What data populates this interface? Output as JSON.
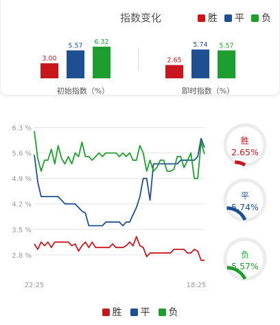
{
  "header": {
    "title": "指数变化",
    "legend": [
      {
        "label": "胜",
        "color": "#c8161d"
      },
      {
        "label": "平",
        "color": "#1d4f91"
      },
      {
        "label": "负",
        "color": "#1e9e2e"
      }
    ]
  },
  "chart_data": [
    {
      "type": "bar",
      "xlabel": "初始指数（%）",
      "categories": [
        "胜",
        "平",
        "负"
      ],
      "values": [
        3.0,
        5.57,
        6.32
      ],
      "labels": [
        "3.00",
        "5.57",
        "6.32"
      ],
      "colors": [
        "#c8161d",
        "#1d4f91",
        "#1e9e2e"
      ]
    },
    {
      "type": "bar",
      "xlabel": "即时指数（%）",
      "categories": [
        "胜",
        "平",
        "负"
      ],
      "values": [
        2.65,
        5.74,
        5.57
      ],
      "labels": [
        "2.65",
        "5.74",
        "5.57"
      ],
      "colors": [
        "#c8161d",
        "#1d4f91",
        "#1e9e2e"
      ]
    },
    {
      "type": "line",
      "ylim": [
        2.4,
        6.5
      ],
      "yticks": [
        2.8,
        3.5,
        4.2,
        4.9,
        5.6,
        6.3
      ],
      "ytick_labels": [
        "2.8 %",
        "3.5 %",
        "4.2 %",
        "4.9 %",
        "5.6 %",
        "6.3 %"
      ],
      "xtick_labels": [
        "22:25",
        "18:25"
      ],
      "grid": true,
      "legend": "bottom",
      "x": [
        0,
        2,
        4,
        6,
        8,
        10,
        12,
        14,
        16,
        18,
        20,
        22,
        24,
        26,
        28,
        30,
        32,
        34,
        36,
        38,
        40,
        42,
        44,
        46,
        48,
        50,
        52,
        54,
        56,
        58,
        60,
        62,
        64,
        66,
        68,
        70,
        72,
        74,
        76,
        78,
        80,
        82,
        84,
        86,
        88,
        90,
        92,
        94,
        96,
        98,
        100
      ],
      "series": [
        {
          "name": "胜",
          "color": "#c8161d",
          "values": [
            3.1,
            2.95,
            3.15,
            3.05,
            3.15,
            3.0,
            3.15,
            3.15,
            3.15,
            3.15,
            3.15,
            3.05,
            3.1,
            2.9,
            3.05,
            3.15,
            3.0,
            3.15,
            3.0,
            3.0,
            3.0,
            3.0,
            3.0,
            3.1,
            3.0,
            3.0,
            3.0,
            3.05,
            3.15,
            3.05,
            3.3,
            3.05,
            3.0,
            2.75,
            2.85,
            2.85,
            2.85,
            2.85,
            2.85,
            2.85,
            2.85,
            2.95,
            2.95,
            2.95,
            2.95,
            2.85,
            2.85,
            2.95,
            2.9,
            2.65,
            2.65
          ]
        },
        {
          "name": "平",
          "color": "#1d4f91",
          "values": [
            5.55,
            4.8,
            4.4,
            4.4,
            4.4,
            4.4,
            4.4,
            4.4,
            4.3,
            4.2,
            4.2,
            4.2,
            4.2,
            4.1,
            4.0,
            3.95,
            3.6,
            3.6,
            3.6,
            3.6,
            3.6,
            3.7,
            3.7,
            3.7,
            3.7,
            3.7,
            3.6,
            3.7,
            3.7,
            3.9,
            4.1,
            4.4,
            4.9,
            4.9,
            4.3,
            5.3,
            5.3,
            5.3,
            5.3,
            5.3,
            5.3,
            5.3,
            5.3,
            5.4,
            5.4,
            5.4,
            5.4,
            5.4,
            5.5,
            6.0,
            5.75
          ]
        },
        {
          "name": "负",
          "color": "#1e9e2e",
          "values": [
            6.2,
            5.45,
            5.1,
            5.4,
            5.4,
            5.7,
            5.3,
            5.8,
            5.45,
            5.3,
            5.5,
            5.3,
            5.6,
            5.5,
            5.9,
            5.5,
            5.5,
            5.4,
            5.5,
            5.6,
            5.5,
            5.6,
            5.6,
            5.6,
            5.6,
            5.5,
            5.6,
            5.5,
            5.6,
            5.4,
            5.4,
            5.8,
            5.6,
            5.1,
            5.4,
            5.1,
            5.2,
            5.4,
            5.4,
            5.1,
            5.1,
            5.15,
            5.5,
            5.5,
            5.2,
            5.4,
            5.6,
            4.9,
            4.9,
            5.9,
            5.57
          ]
        }
      ]
    }
  ],
  "gauges": [
    {
      "label": "胜",
      "value": "2.65%",
      "fraction": 0.0265,
      "color": "#c8161d"
    },
    {
      "label": "平",
      "value": "5.74%",
      "fraction": 0.0574,
      "color": "#1d4f91"
    },
    {
      "label": "负",
      "value": "5.57%",
      "fraction": 0.0557,
      "color": "#1e9e2e"
    }
  ],
  "footer_legend": [
    {
      "label": "胜",
      "color": "#c8161d"
    },
    {
      "label": "平",
      "color": "#1d4f91"
    },
    {
      "label": "负",
      "color": "#1e9e2e"
    }
  ]
}
